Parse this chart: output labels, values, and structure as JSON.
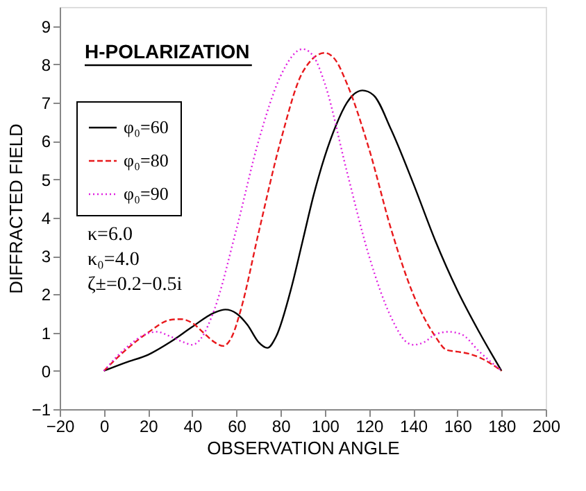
{
  "chart_data": {
    "type": "line",
    "title": "H-POLARIZATION",
    "xlabel": "OBSERVATION ANGLE",
    "ylabel": "DIFFRACTED FIELD",
    "xlim": [
      -20,
      200
    ],
    "xticks": [
      -20,
      0,
      20,
      40,
      60,
      80,
      100,
      120,
      140,
      160,
      180,
      200
    ],
    "ylim": [
      -1,
      9.5
    ],
    "yticks": [
      -1,
      0,
      1,
      2,
      3,
      4,
      5,
      6,
      7,
      8,
      9
    ],
    "grid": false,
    "legend": "top left",
    "marker": "none",
    "annotations": [
      "κ=6.0",
      "κ₀=4.0",
      "ζ±=0.2−0.5i"
    ],
    "series": [
      {
        "name": "φ₀=60",
        "color": "#000000",
        "line_style": "solid",
        "x": [
          0,
          10,
          20,
          30,
          40,
          50,
          55,
          60,
          65,
          70,
          74,
          78,
          85,
          90,
          95,
          100,
          105,
          110,
          117,
          122,
          130,
          140,
          150,
          160,
          170,
          180
        ],
        "values": [
          0,
          0.22,
          0.42,
          0.75,
          1.15,
          1.52,
          1.6,
          1.5,
          1.2,
          0.75,
          0.6,
          0.9,
          2.2,
          3.4,
          4.6,
          5.6,
          6.4,
          7.0,
          7.32,
          7.2,
          6.3,
          4.9,
          3.4,
          2.1,
          1.0,
          0
        ]
      },
      {
        "name": "φ₀=80",
        "color": "#e8191c",
        "line_style": "dashed",
        "x": [
          0,
          10,
          20,
          30,
          35,
          40,
          45,
          50,
          54,
          58,
          62,
          70,
          80,
          90,
          100,
          105,
          110,
          120,
          130,
          140,
          150,
          155,
          160,
          165,
          170,
          180
        ],
        "values": [
          0,
          0.55,
          1.0,
          1.33,
          1.35,
          1.25,
          1.0,
          0.75,
          0.65,
          0.9,
          1.6,
          3.6,
          6.0,
          7.8,
          8.3,
          8.1,
          7.5,
          5.8,
          3.7,
          2.0,
          0.9,
          0.55,
          0.5,
          0.45,
          0.35,
          0
        ]
      },
      {
        "name": "φ₀=90",
        "color": "#e020e0",
        "line_style": "dotted",
        "x": [
          0,
          10,
          20,
          24,
          30,
          36,
          40,
          44,
          50,
          60,
          70,
          80,
          90,
          95,
          100,
          110,
          120,
          130,
          137,
          140,
          145,
          150,
          156,
          162,
          170,
          180
        ],
        "values": [
          0,
          0.6,
          0.98,
          1.02,
          0.9,
          0.75,
          0.68,
          0.85,
          1.6,
          3.7,
          6.0,
          7.7,
          8.4,
          8.2,
          7.5,
          5.2,
          3.0,
          1.4,
          0.75,
          0.68,
          0.75,
          0.95,
          1.02,
          0.95,
          0.5,
          0
        ]
      }
    ]
  }
}
